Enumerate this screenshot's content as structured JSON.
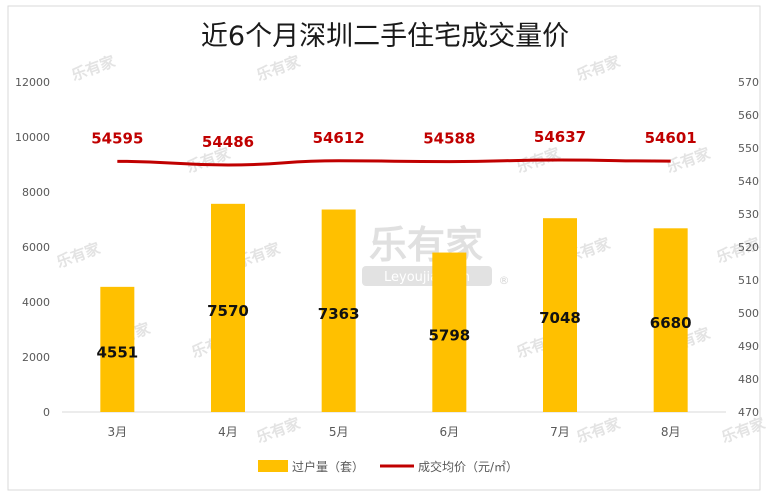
{
  "chart_data": {
    "type": "bar",
    "title": "近6个月深圳二手住宅成交量价",
    "categories": [
      "3月",
      "4月",
      "5月",
      "6月",
      "7月",
      "8月"
    ],
    "series": [
      {
        "name": "过户量（套）",
        "type": "bar",
        "axis": "left",
        "color": "#FFC000",
        "values": [
          4551,
          7570,
          7363,
          5798,
          7048,
          6680
        ]
      },
      {
        "name": "成交均价（元/㎡）",
        "type": "line",
        "axis": "right",
        "color": "#C00000",
        "values": [
          54595,
          54486,
          54612,
          54588,
          54637,
          54601
        ]
      }
    ],
    "left_axis": {
      "min": 0,
      "max": 12000,
      "ticks": [
        "0",
        "2000",
        "4000",
        "6000",
        "8000",
        "10000",
        "12000"
      ]
    },
    "right_axis": {
      "min": 47000,
      "max": 57000,
      "ticks": [
        "470",
        "480",
        "490",
        "500",
        "510",
        "520",
        "530",
        "540",
        "550",
        "560",
        "570"
      ]
    },
    "xlabel": "",
    "ylabel": "",
    "legend_position": "bottom",
    "grid": false
  },
  "watermark": {
    "logo_text": "乐有家",
    "logo_subtext": "Leyoujia.com",
    "registered_mark": "®"
  }
}
